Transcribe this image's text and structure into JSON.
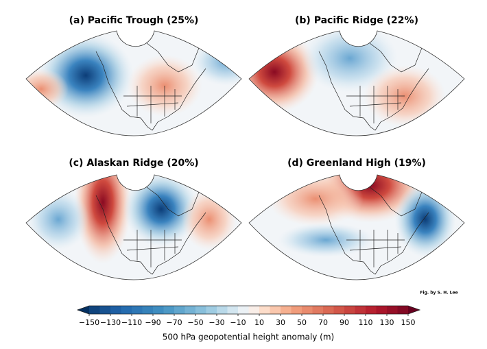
{
  "panels": [
    {
      "title": "(a) Pacific Trough (25%)"
    },
    {
      "title": "(b) Pacific Ridge (22%)"
    },
    {
      "title": "(c) Alaskan Ridge (20%)"
    },
    {
      "title": "(d) Greenland High (19%)"
    }
  ],
  "credit": "Fig. by S. H. Lee",
  "colorbar": {
    "label": "500 hPa geopotential height anomaly (m)",
    "range": [
      -150,
      150
    ],
    "level_step": 10,
    "colormap": "RdBu_r",
    "extend": "both",
    "ticks": [
      {
        "value": -150,
        "label": "−150"
      },
      {
        "value": -130,
        "label": "−130"
      },
      {
        "value": -110,
        "label": "−110"
      },
      {
        "value": -90,
        "label": "−90"
      },
      {
        "value": -70,
        "label": "−70"
      },
      {
        "value": -50,
        "label": "−50"
      },
      {
        "value": -30,
        "label": "−30"
      },
      {
        "value": -10,
        "label": "−10"
      },
      10,
      30,
      50,
      70,
      90,
      110,
      130,
      150
    ]
  }
}
